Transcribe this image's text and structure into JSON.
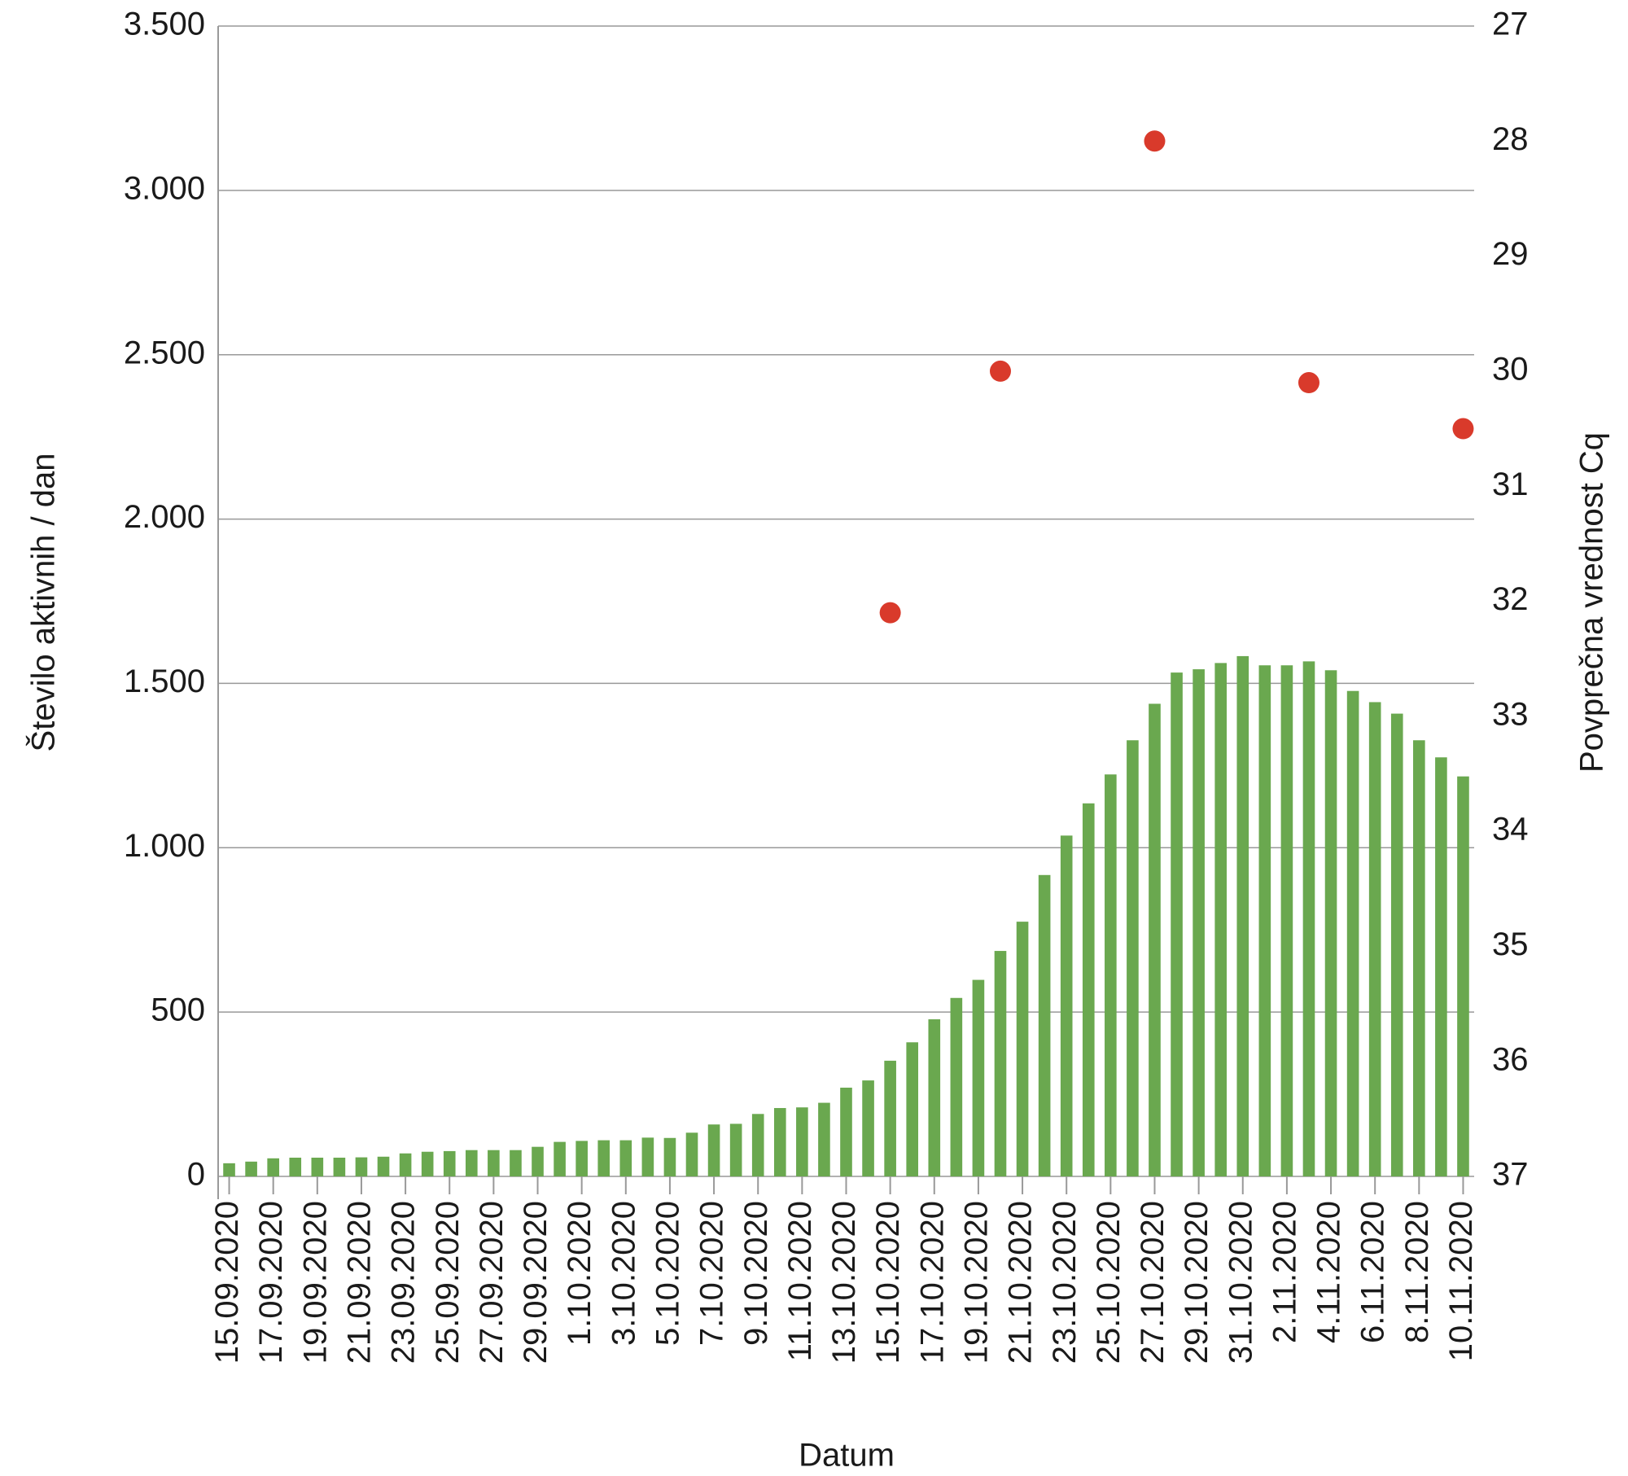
{
  "chart_data": {
    "type": "bar",
    "ylabel": "Število aktivnih / dan",
    "y2label": "Povprečna vrednost Cq",
    "xlabel": "Datum",
    "categories": [
      "15.09.2020",
      null,
      "17.09.2020",
      null,
      "19.09.2020",
      null,
      "21.09.2020",
      null,
      "23.09.2020",
      null,
      "25.09.2020",
      null,
      "27.09.2020",
      null,
      "29.09.2020",
      null,
      "1.10.2020",
      null,
      "3.10.2020",
      null,
      "5.10.2020",
      null,
      "7.10.2020",
      null,
      "9.10.2020",
      null,
      "11.10.2020",
      null,
      "13.10.2020",
      null,
      "15.10.2020",
      null,
      "17.10.2020",
      null,
      "19.10.2020",
      null,
      "21.10.2020",
      null,
      "23.10.2020",
      null,
      "25.10.2020",
      null,
      "27.10.2020",
      null,
      "29.10.2020",
      null,
      "31.10.2020",
      null,
      "2.11.2020",
      null,
      "4.11.2020",
      null,
      "6.11.2020",
      null,
      "8.11.2020",
      null,
      "10.11.2020"
    ],
    "values": [
      40,
      45,
      55,
      57,
      57,
      57,
      58,
      60,
      70,
      75,
      77,
      80,
      80,
      80,
      90,
      105,
      108,
      110,
      110,
      118,
      117,
      133,
      158,
      160,
      190,
      208,
      210,
      224,
      270,
      292,
      352,
      408,
      478,
      543,
      598,
      686,
      775,
      917,
      1037,
      1135,
      1223,
      1327,
      1438,
      1533,
      1543,
      1562,
      1583,
      1555,
      1555,
      1567,
      1540,
      1477,
      1443,
      1408,
      1327,
      1275,
      1217
    ],
    "color": "#6aa84f",
    "overlay": {
      "type": "scatter",
      "axis": "y2",
      "color": "#d93a2b",
      "values": [
        null,
        null,
        null,
        null,
        null,
        null,
        null,
        null,
        null,
        null,
        null,
        null,
        null,
        null,
        null,
        null,
        null,
        null,
        null,
        null,
        null,
        null,
        null,
        null,
        null,
        null,
        null,
        null,
        null,
        null,
        32.1,
        null,
        null,
        null,
        null,
        30.0,
        null,
        null,
        null,
        null,
        null,
        null,
        28.0,
        null,
        null,
        null,
        null,
        null,
        null,
        30.1,
        null,
        null,
        null,
        null,
        null,
        null,
        30.5
      ]
    },
    "ylim": [
      0,
      3500
    ],
    "yticks": [
      0,
      500,
      {
        "value": 1000,
        "label": "1.000"
      },
      {
        "value": 1500,
        "label": "1.500"
      },
      {
        "value": 2000,
        "label": "2.000"
      },
      {
        "value": 2500,
        "label": "2.500"
      },
      {
        "value": 3000,
        "label": "3.000"
      },
      {
        "value": 3500,
        "label": "3.500"
      }
    ],
    "y2lim": [
      37,
      27
    ],
    "y2ticks": [
      27,
      28,
      29,
      30,
      31,
      32,
      33,
      34,
      35,
      36,
      37
    ],
    "grid": true
  }
}
